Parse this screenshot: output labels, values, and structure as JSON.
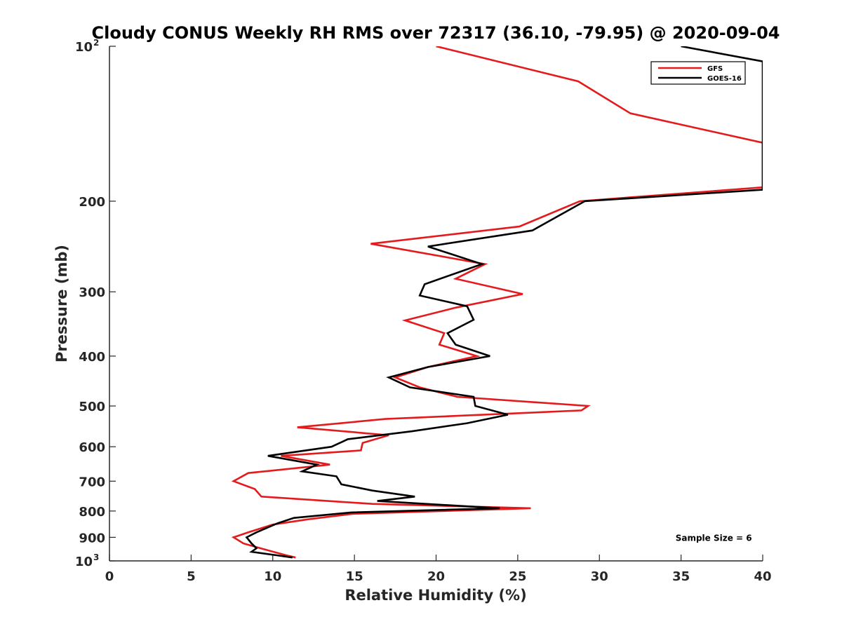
{
  "chart_data": {
    "type": "line",
    "title": "Cloudy CONUS Weekly RH RMS over 72317 (36.10, -79.95) @ 2020-09-04",
    "xlabel": "Relative Humidity (%)",
    "ylabel": "Pressure (mb)",
    "xlim": [
      0,
      40
    ],
    "ylim": [
      100,
      1000
    ],
    "y_scale": "log",
    "y_reversed": true,
    "x_ticks": [
      "0",
      "5",
      "10",
      "15",
      "20",
      "25",
      "30",
      "35",
      "40"
    ],
    "y_ticks": [
      {
        "value": 100,
        "base": "10",
        "exp": "2"
      },
      {
        "value": 200,
        "label": "200"
      },
      {
        "value": 300,
        "label": "300"
      },
      {
        "value": 400,
        "label": "400"
      },
      {
        "value": 500,
        "label": "500"
      },
      {
        "value": 600,
        "label": "600"
      },
      {
        "value": 700,
        "label": "700"
      },
      {
        "value": 800,
        "label": "800"
      },
      {
        "value": 900,
        "label": "900"
      },
      {
        "value": 1000,
        "base": "10",
        "exp": "3"
      }
    ],
    "grid": false,
    "legend_position": "top-right",
    "series": [
      {
        "name": "GFS",
        "color": "#e41a1c",
        "points": [
          [
            20.0,
            100
          ],
          [
            28.7,
            117
          ],
          [
            31.9,
            135
          ],
          [
            40.0,
            154
          ],
          [
            40.0,
            188
          ],
          [
            28.8,
            200
          ],
          [
            25.1,
            224
          ],
          [
            16.0,
            242
          ],
          [
            23.0,
            265
          ],
          [
            21.2,
            283
          ],
          [
            25.3,
            303
          ],
          [
            21.2,
            322
          ],
          [
            18.1,
            341
          ],
          [
            20.5,
            361
          ],
          [
            20.2,
            380
          ],
          [
            22.5,
            400
          ],
          [
            19.5,
            420
          ],
          [
            17.5,
            440
          ],
          [
            19.0,
            460
          ],
          [
            21.3,
            480
          ],
          [
            29.3,
            500
          ],
          [
            28.9,
            510
          ],
          [
            16.9,
            530
          ],
          [
            11.5,
            550
          ],
          [
            17.1,
            570
          ],
          [
            15.5,
            590
          ],
          [
            15.4,
            610
          ],
          [
            10.5,
            625
          ],
          [
            13.5,
            650
          ],
          [
            8.5,
            675
          ],
          [
            7.6,
            700
          ],
          [
            8.9,
            725
          ],
          [
            9.3,
            750
          ],
          [
            16.1,
            775
          ],
          [
            25.8,
            790
          ],
          [
            14.9,
            810
          ],
          [
            12.2,
            830
          ],
          [
            10.0,
            850
          ],
          [
            8.5,
            880
          ],
          [
            7.6,
            900
          ],
          [
            8.2,
            925
          ],
          [
            9.5,
            950
          ],
          [
            10.8,
            975
          ],
          [
            11.4,
            985
          ]
        ]
      },
      {
        "name": "GOES-16",
        "color": "#000000",
        "points": [
          [
            35.0,
            100
          ],
          [
            40.0,
            107
          ],
          [
            40.0,
            190
          ],
          [
            29.1,
            200
          ],
          [
            25.9,
            228
          ],
          [
            19.5,
            245
          ],
          [
            22.8,
            265
          ],
          [
            19.3,
            290
          ],
          [
            19.0,
            305
          ],
          [
            21.9,
            320
          ],
          [
            22.3,
            340
          ],
          [
            20.7,
            361
          ],
          [
            21.2,
            380
          ],
          [
            23.3,
            400
          ],
          [
            19.5,
            420
          ],
          [
            17.1,
            440
          ],
          [
            18.4,
            460
          ],
          [
            22.3,
            480
          ],
          [
            22.4,
            500
          ],
          [
            24.4,
            520
          ],
          [
            21.9,
            540
          ],
          [
            18.5,
            560
          ],
          [
            14.6,
            580
          ],
          [
            13.6,
            600
          ],
          [
            9.7,
            625
          ],
          [
            12.7,
            650
          ],
          [
            11.8,
            670
          ],
          [
            13.9,
            685
          ],
          [
            14.2,
            710
          ],
          [
            16.1,
            730
          ],
          [
            18.7,
            750
          ],
          [
            16.4,
            765
          ],
          [
            23.9,
            790
          ],
          [
            14.8,
            805
          ],
          [
            11.3,
            825
          ],
          [
            10.3,
            845
          ],
          [
            9.0,
            880
          ],
          [
            8.4,
            900
          ],
          [
            8.7,
            925
          ],
          [
            9.0,
            945
          ],
          [
            8.7,
            960
          ],
          [
            10.2,
            975
          ],
          [
            11.2,
            985
          ]
        ]
      }
    ],
    "annotations": [
      {
        "text": "Sample Size = 6",
        "x": 37,
        "y": 900
      }
    ]
  }
}
